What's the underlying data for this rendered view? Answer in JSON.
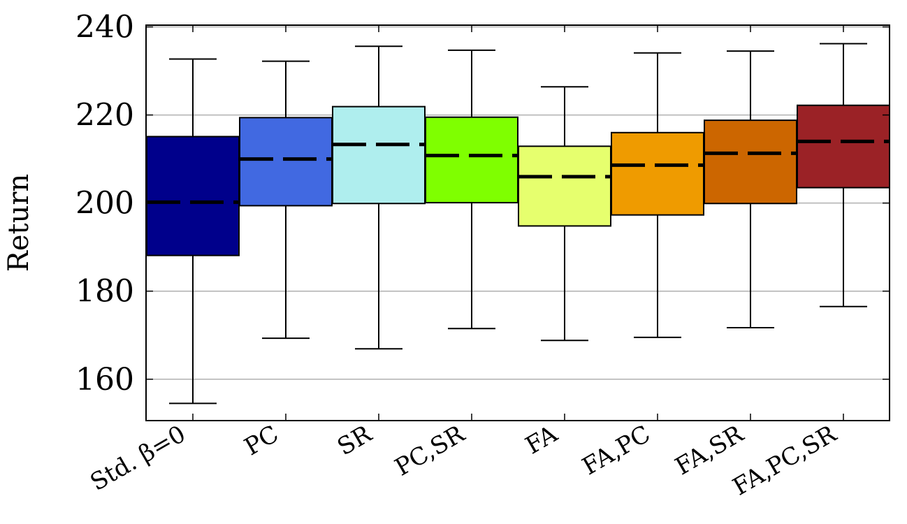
{
  "chart_data": {
    "type": "boxplot",
    "ylabel": "Return",
    "xlabel": "",
    "ylim": [
      150.6,
      240.4
    ],
    "yticks": [
      160,
      180,
      200,
      220,
      240
    ],
    "grid": {
      "horizontal": true,
      "color": "#b0b0b0"
    },
    "categories": [
      "Std. β=0",
      "PC",
      "SR",
      "PC,SR",
      "FA",
      "FA,PC",
      "FA,SR",
      "FA,PC,SR"
    ],
    "boxes": [
      {
        "category": "Std. β=0",
        "whisker_low": 154.5,
        "q1": 188.1,
        "median": 200.2,
        "q3": 215.1,
        "whisker_high": 232.7,
        "color": "#00008b"
      },
      {
        "category": "PC",
        "whisker_low": 169.3,
        "q1": 199.4,
        "median": 210.0,
        "q3": 219.4,
        "whisker_high": 232.2,
        "color": "#4169e1"
      },
      {
        "category": "SR",
        "whisker_low": 166.9,
        "q1": 199.9,
        "median": 213.3,
        "q3": 221.9,
        "whisker_high": 235.6,
        "color": "#afeeee"
      },
      {
        "category": "PC,SR",
        "whisker_low": 171.5,
        "q1": 200.1,
        "median": 210.8,
        "q3": 219.5,
        "whisker_high": 234.7,
        "color": "#7fff00"
      },
      {
        "category": "FA",
        "whisker_low": 168.8,
        "q1": 194.8,
        "median": 206.0,
        "q3": 212.9,
        "whisker_high": 226.4,
        "color": "#e6ff6e"
      },
      {
        "category": "FA,PC",
        "whisker_low": 169.5,
        "q1": 197.3,
        "median": 208.6,
        "q3": 216.0,
        "whisker_high": 234.1,
        "color": "#ef9b00"
      },
      {
        "category": "FA,SR",
        "whisker_low": 171.7,
        "q1": 199.9,
        "median": 211.3,
        "q3": 218.8,
        "whisker_high": 234.5,
        "color": "#cc6600"
      },
      {
        "category": "FA,PC,SR",
        "whisker_low": 176.5,
        "q1": 203.5,
        "median": 214.0,
        "q3": 222.2,
        "whisker_high": 236.2,
        "color": "#9b2226"
      }
    ]
  }
}
